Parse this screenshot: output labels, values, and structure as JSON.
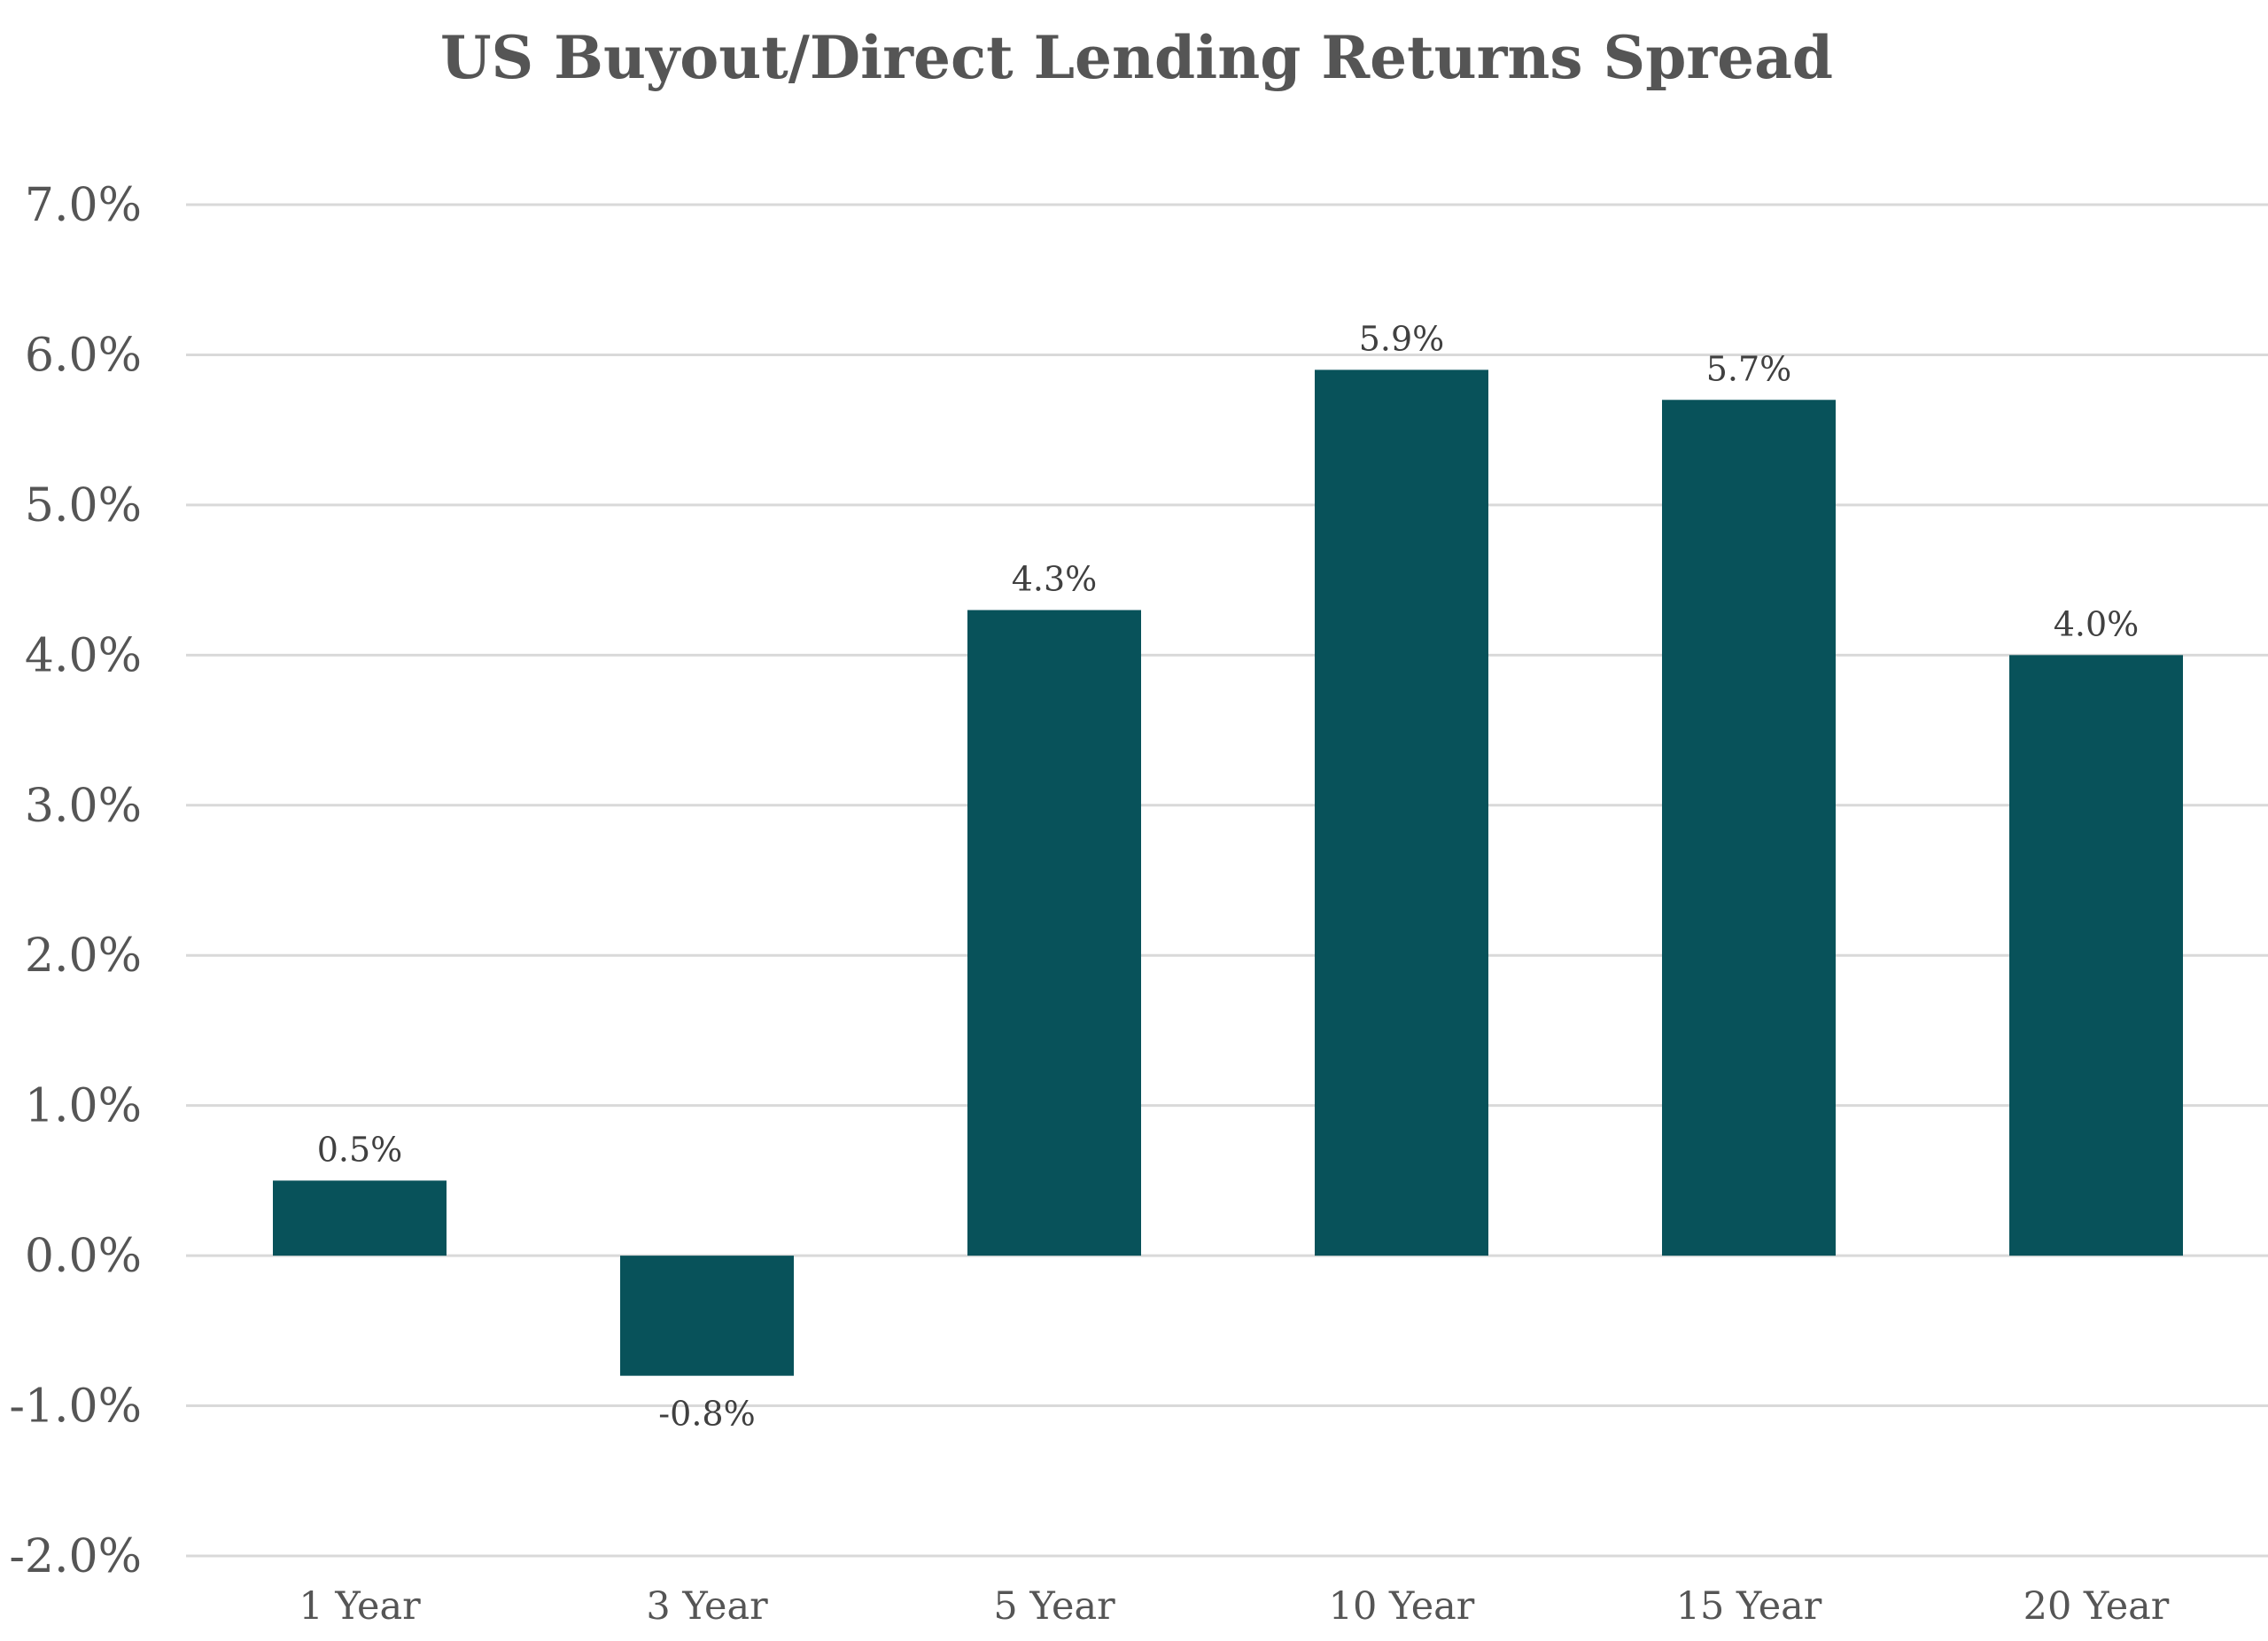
{
  "chart_data": {
    "type": "bar",
    "title": "US Buyout/Direct Lending Returns Spread",
    "xlabel": "",
    "ylabel": "",
    "categories": [
      "1 Year",
      "3 Year",
      "5 Year",
      "10 Year",
      "15 Year",
      "20 Year"
    ],
    "values": [
      0.5,
      -0.8,
      4.3,
      5.9,
      5.7,
      4.0
    ],
    "data_labels": [
      "0.5%",
      "-0.8%",
      "4.3%",
      "5.9%",
      "5.7%",
      "4.0%"
    ],
    "ylim": [
      -2.0,
      7.0
    ],
    "yticks": [
      7.0,
      6.0,
      5.0,
      4.0,
      3.0,
      2.0,
      1.0,
      0.0,
      -1.0,
      -2.0
    ],
    "ytick_labels": [
      "7.0%",
      "6.0%",
      "5.0%",
      "4.0%",
      "3.0%",
      "2.0%",
      "1.0%",
      "0.0%",
      "-1.0%",
      "-2.0%"
    ],
    "grid": true,
    "legend": "none",
    "bar_color": "#08525a"
  }
}
